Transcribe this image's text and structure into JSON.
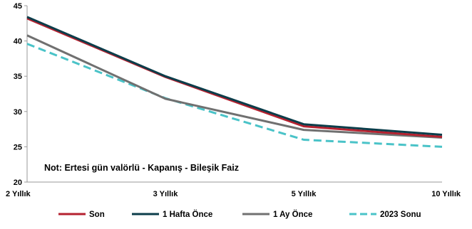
{
  "chart_data": {
    "type": "line",
    "categories": [
      "2 Yıllık",
      "3 Yıllık",
      "5 Yıllık",
      "10 Yıllık"
    ],
    "ylim": [
      20,
      45
    ],
    "yticks": [
      20,
      25,
      30,
      35,
      40,
      45
    ],
    "grid": false,
    "legend_position": "bottom",
    "annotation": "Not: Ertesi gün valörlü - Kapanış - Bileşik Faiz",
    "series": [
      {
        "name": "Son",
        "color": "#b5212f",
        "dash": "solid",
        "values": [
          43.2,
          34.9,
          27.9,
          26.4
        ]
      },
      {
        "name": "1 Hafta Önce",
        "color": "#0b3d4a",
        "dash": "solid",
        "values": [
          43.4,
          35.0,
          28.2,
          26.7
        ]
      },
      {
        "name": "1 Ay Önce",
        "color": "#707070",
        "dash": "solid",
        "values": [
          40.8,
          31.8,
          27.4,
          26.3
        ]
      },
      {
        "name": "2023 Sonu",
        "color": "#4ac3c8",
        "dash": "dashed",
        "values": [
          39.6,
          31.9,
          26.0,
          25.0
        ]
      }
    ]
  }
}
